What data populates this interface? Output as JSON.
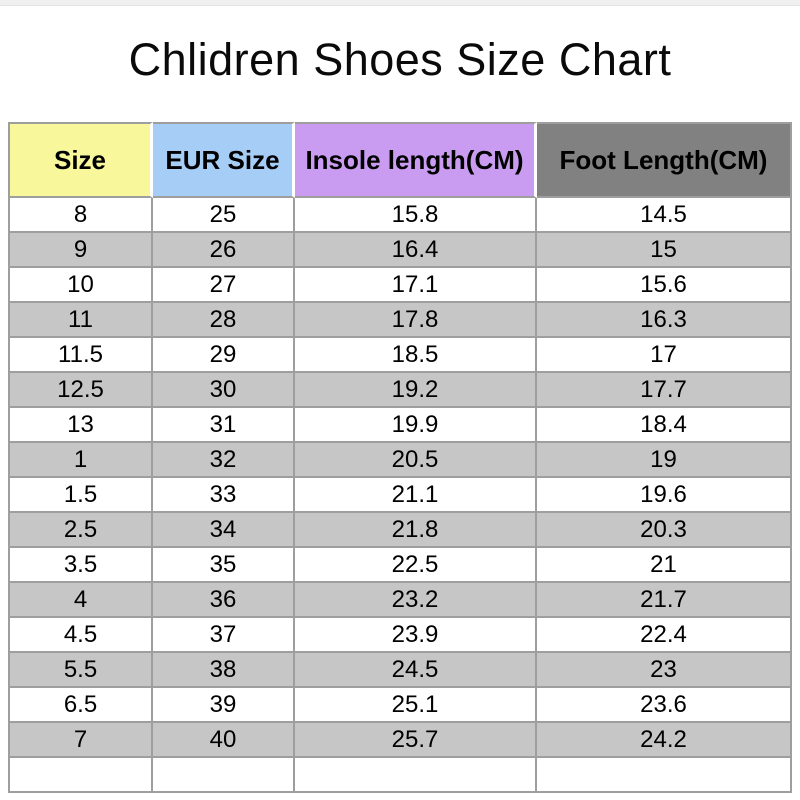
{
  "page": {
    "top_strip_color": "#f0f0f0"
  },
  "colors": {
    "border": "#9e9e9e",
    "row_alt": "#c6c6c6",
    "text": "#000000",
    "background": "#ffffff"
  },
  "chart_data": {
    "type": "table",
    "title": "Chlidren Shoes Size Chart",
    "columns": [
      {
        "id": "size",
        "label": "Size",
        "bg": "#f9f79b"
      },
      {
        "id": "eur-size",
        "label": "EUR Size",
        "bg": "#a6cdf5"
      },
      {
        "id": "insole-length",
        "label": "Insole length(CM)",
        "bg": "#c99cf2"
      },
      {
        "id": "foot-length",
        "label": "Foot Length(CM)",
        "bg": "#818181"
      }
    ],
    "rows": [
      [
        "8",
        "25",
        "15.8",
        "14.5"
      ],
      [
        "9",
        "26",
        "16.4",
        "15"
      ],
      [
        "10",
        "27",
        "17.1",
        "15.6"
      ],
      [
        "11",
        "28",
        "17.8",
        "16.3"
      ],
      [
        "11.5",
        "29",
        "18.5",
        "17"
      ],
      [
        "12.5",
        "30",
        "19.2",
        "17.7"
      ],
      [
        "13",
        "31",
        "19.9",
        "18.4"
      ],
      [
        "1",
        "32",
        "20.5",
        "19"
      ],
      [
        "1.5",
        "33",
        "21.1",
        "19.6"
      ],
      [
        "2.5",
        "34",
        "21.8",
        "20.3"
      ],
      [
        "3.5",
        "35",
        "22.5",
        "21"
      ],
      [
        "4",
        "36",
        "23.2",
        "21.7"
      ],
      [
        "4.5",
        "37",
        "23.9",
        "22.4"
      ],
      [
        "5.5",
        "38",
        "24.5",
        "23"
      ],
      [
        "6.5",
        "39",
        "25.1",
        "23.6"
      ],
      [
        "7",
        "40",
        "25.7",
        "24.2"
      ],
      [
        "",
        "",
        "",
        ""
      ]
    ]
  }
}
